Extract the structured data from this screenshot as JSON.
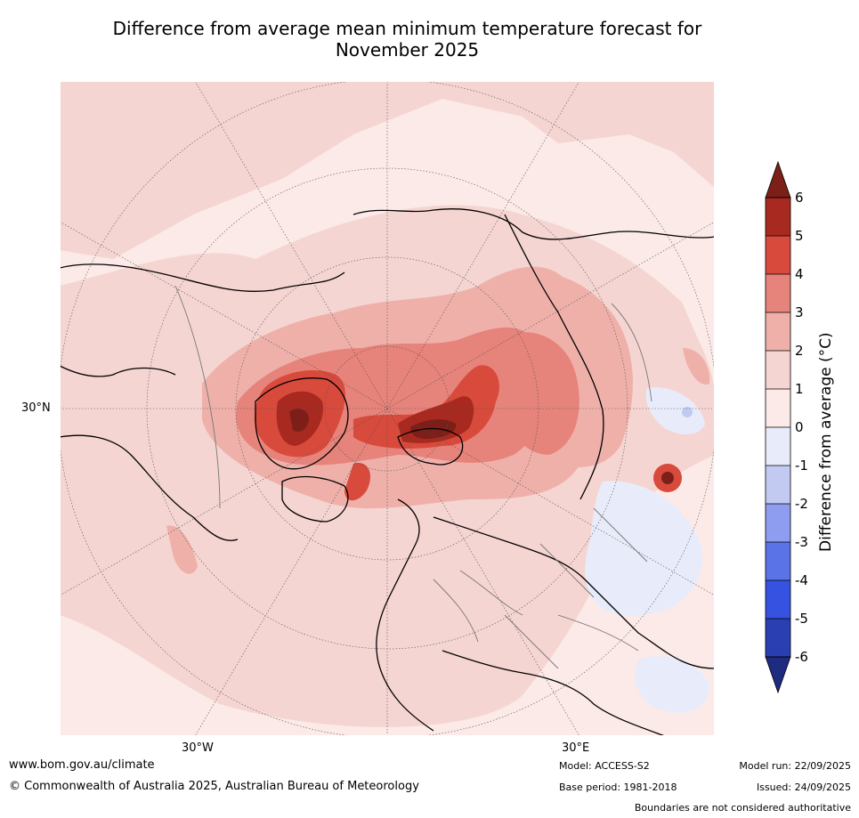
{
  "title_line1": "Difference from average mean minimum temperature forecast for",
  "title_line2": "November 2025",
  "map": {
    "projection": "north-polar-stereographic",
    "lat_label": "30°N",
    "lon_labels": {
      "west": "30°W",
      "east": "30°E"
    }
  },
  "colorbar": {
    "label": "Difference from average (°C)",
    "ticks": [
      "6",
      "5",
      "4",
      "3",
      "2",
      "1",
      "0",
      "-1",
      "-2",
      "-3",
      "-4",
      "-5",
      "-6"
    ],
    "colors": [
      "#7b1f18",
      "#a8291f",
      "#d84a3c",
      "#e6837a",
      "#efb0aa",
      "#f5d5d1",
      "#fbeae7",
      "#e8ecfa",
      "#c3caf1",
      "#8e9df0",
      "#5a73e6",
      "#3553e0",
      "#2a3fb1",
      "#1f2b80"
    ]
  },
  "footer": {
    "website": "www.bom.gov.au/climate",
    "copyright": "© Commonwealth of Australia 2025, Australian Bureau of Meteorology",
    "model": "Model: ACCESS-S2",
    "base_period": "Base period: 1981-2018",
    "model_run": "Model run: 22/09/2025",
    "issued": "Issued: 24/09/2025",
    "disclaimer": "Boundaries are not considered authoritative"
  }
}
